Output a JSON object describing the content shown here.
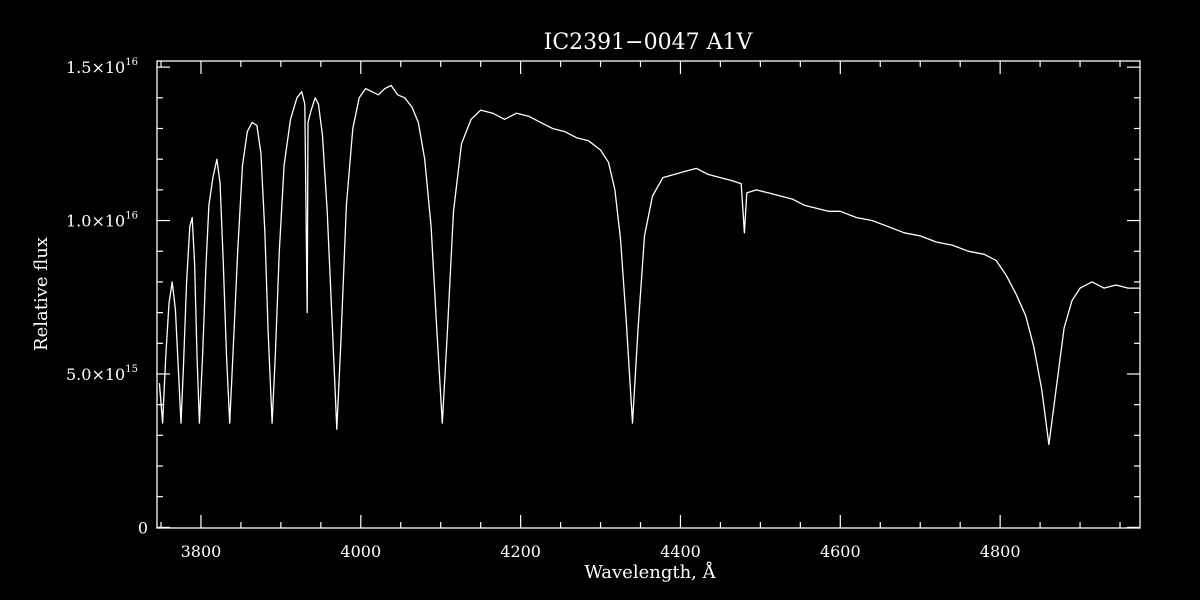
{
  "chart_data": {
    "type": "line",
    "title": "IC2391−0047  A1V",
    "xlabel": "Wavelength, Å",
    "ylabel": "Relative flux",
    "xlim": [
      3745,
      4975
    ],
    "ylim": [
      -20000000000000,
      15200000000000000
    ],
    "x_ticks": [
      3800,
      4000,
      4200,
      4400,
      4600,
      4800
    ],
    "y_ticks": [
      {
        "value": 0,
        "label": "0",
        "exp": ""
      },
      {
        "value": 5000000000000000,
        "label": "5.0×10",
        "exp": "15"
      },
      {
        "value": 10000000000000000,
        "label": "1.0×10",
        "exp": "16"
      },
      {
        "value": 15000000000000000,
        "label": "1.5×10",
        "exp": "16"
      }
    ],
    "x_minor_step": 50,
    "y_minor_step": 1000000000000000,
    "grid": false,
    "series": [
      {
        "color": "#ffffff",
        "points": [
          [
            3748,
            4700000000000000.0
          ],
          [
            3752,
            3400000000000000.0
          ],
          [
            3756,
            5600000000000000.0
          ],
          [
            3760,
            7300000000000000.0
          ],
          [
            3764,
            8000000000000000.0
          ],
          [
            3768,
            7100000000000000.0
          ],
          [
            3772,
            5000000000000000.0
          ],
          [
            3775,
            3400000000000000.0
          ],
          [
            3778,
            5200000000000000.0
          ],
          [
            3782,
            8000000000000000.0
          ],
          [
            3786,
            9800000000000000.0
          ],
          [
            3789,
            1.01e+16
          ],
          [
            3792,
            8600000000000000.0
          ],
          [
            3795,
            5600000000000000.0
          ],
          [
            3798,
            3400000000000000.0
          ],
          [
            3802,
            5600000000000000.0
          ],
          [
            3806,
            8400000000000000.0
          ],
          [
            3810,
            1.05e+16
          ],
          [
            3815,
            1.14e+16
          ],
          [
            3820,
            1.2e+16
          ],
          [
            3824,
            1.12e+16
          ],
          [
            3828,
            8600000000000000.0
          ],
          [
            3832,
            5600000000000000.0
          ],
          [
            3836,
            3400000000000000.0
          ],
          [
            3840,
            5600000000000000.0
          ],
          [
            3846,
            9000000000000000.0
          ],
          [
            3852,
            1.18e+16
          ],
          [
            3858,
            1.29e+16
          ],
          [
            3864,
            1.32e+16
          ],
          [
            3870,
            1.31e+16
          ],
          [
            3875,
            1.22e+16
          ],
          [
            3880,
            9600000000000000.0
          ],
          [
            3884,
            6400000000000000.0
          ],
          [
            3889,
            3400000000000000.0
          ],
          [
            3893,
            5600000000000000.0
          ],
          [
            3898,
            9000000000000000.0
          ],
          [
            3904,
            1.18e+16
          ],
          [
            3912,
            1.33e+16
          ],
          [
            3920,
            1.4e+16
          ],
          [
            3926,
            1.42e+16
          ],
          [
            3930,
            1.38e+16
          ],
          [
            3933,
            7000000000000000.0
          ],
          [
            3934,
            1.32e+16
          ],
          [
            3938,
            1.36e+16
          ],
          [
            3943,
            1.4e+16
          ],
          [
            3947,
            1.38e+16
          ],
          [
            3952,
            1.28e+16
          ],
          [
            3958,
            1.03e+16
          ],
          [
            3964,
            6800000000000000.0
          ],
          [
            3970,
            3200000000000000.0
          ],
          [
            3975,
            6000000000000000.0
          ],
          [
            3982,
            1.05e+16
          ],
          [
            3990,
            1.3e+16
          ],
          [
            3998,
            1.4e+16
          ],
          [
            4006,
            1.43e+16
          ],
          [
            4014,
            1.42e+16
          ],
          [
            4022,
            1.41e+16
          ],
          [
            4030,
            1.43e+16
          ],
          [
            4038,
            1.44e+16
          ],
          [
            4046,
            1.41e+16
          ],
          [
            4055,
            1.4e+16
          ],
          [
            4064,
            1.37e+16
          ],
          [
            4072,
            1.32e+16
          ],
          [
            4080,
            1.2e+16
          ],
          [
            4088,
            9800000000000000.0
          ],
          [
            4095,
            6500000000000000.0
          ],
          [
            4102,
            3400000000000000.0
          ],
          [
            4108,
            6200000000000000.0
          ],
          [
            4116,
            1.03e+16
          ],
          [
            4126,
            1.25e+16
          ],
          [
            4138,
            1.33e+16
          ],
          [
            4150,
            1.36e+16
          ],
          [
            4165,
            1.35e+16
          ],
          [
            4180,
            1.33e+16
          ],
          [
            4195,
            1.35e+16
          ],
          [
            4210,
            1.34e+16
          ],
          [
            4225,
            1.32e+16
          ],
          [
            4240,
            1.3e+16
          ],
          [
            4255,
            1.29e+16
          ],
          [
            4270,
            1.27e+16
          ],
          [
            4285,
            1.26e+16
          ],
          [
            4300,
            1.23e+16
          ],
          [
            4310,
            1.19e+16
          ],
          [
            4318,
            1.1e+16
          ],
          [
            4325,
            9400000000000000.0
          ],
          [
            4332,
            6800000000000000.0
          ],
          [
            4340,
            3400000000000000.0
          ],
          [
            4347,
            6500000000000000.0
          ],
          [
            4355,
            9500000000000000.0
          ],
          [
            4365,
            1.08e+16
          ],
          [
            4378,
            1.14e+16
          ],
          [
            4392,
            1.15e+16
          ],
          [
            4405,
            1.16e+16
          ],
          [
            4420,
            1.17e+16
          ],
          [
            4435,
            1.15e+16
          ],
          [
            4450,
            1.14e+16
          ],
          [
            4465,
            1.13e+16
          ],
          [
            4476,
            1.12e+16
          ],
          [
            4480,
            9600000000000000.0
          ],
          [
            4483,
            1.09e+16
          ],
          [
            4495,
            1.1e+16
          ],
          [
            4510,
            1.09e+16
          ],
          [
            4525,
            1.08e+16
          ],
          [
            4540,
            1.07e+16
          ],
          [
            4555,
            1.05e+16
          ],
          [
            4570,
            1.04e+16
          ],
          [
            4585,
            1.03e+16
          ],
          [
            4600,
            1.03e+16
          ],
          [
            4620,
            1.01e+16
          ],
          [
            4640,
            1e+16
          ],
          [
            4660,
            9800000000000000.0
          ],
          [
            4680,
            9600000000000000.0
          ],
          [
            4700,
            9500000000000000.0
          ],
          [
            4720,
            9300000000000000.0
          ],
          [
            4740,
            9200000000000000.0
          ],
          [
            4760,
            9000000000000000.0
          ],
          [
            4780,
            8900000000000000.0
          ],
          [
            4795,
            8700000000000000.0
          ],
          [
            4808,
            8200000000000000.0
          ],
          [
            4820,
            7600000000000000.0
          ],
          [
            4832,
            6900000000000000.0
          ],
          [
            4842,
            5900000000000000.0
          ],
          [
            4852,
            4500000000000000.0
          ],
          [
            4861,
            2700000000000000.0
          ],
          [
            4870,
            4500000000000000.0
          ],
          [
            4880,
            6500000000000000.0
          ],
          [
            4890,
            7400000000000000.0
          ],
          [
            4900,
            7800000000000000.0
          ],
          [
            4915,
            8000000000000000.0
          ],
          [
            4930,
            7800000000000000.0
          ],
          [
            4945,
            7900000000000000.0
          ],
          [
            4960,
            7800000000000000.0
          ],
          [
            4975,
            7800000000000000.0
          ]
        ]
      }
    ]
  }
}
